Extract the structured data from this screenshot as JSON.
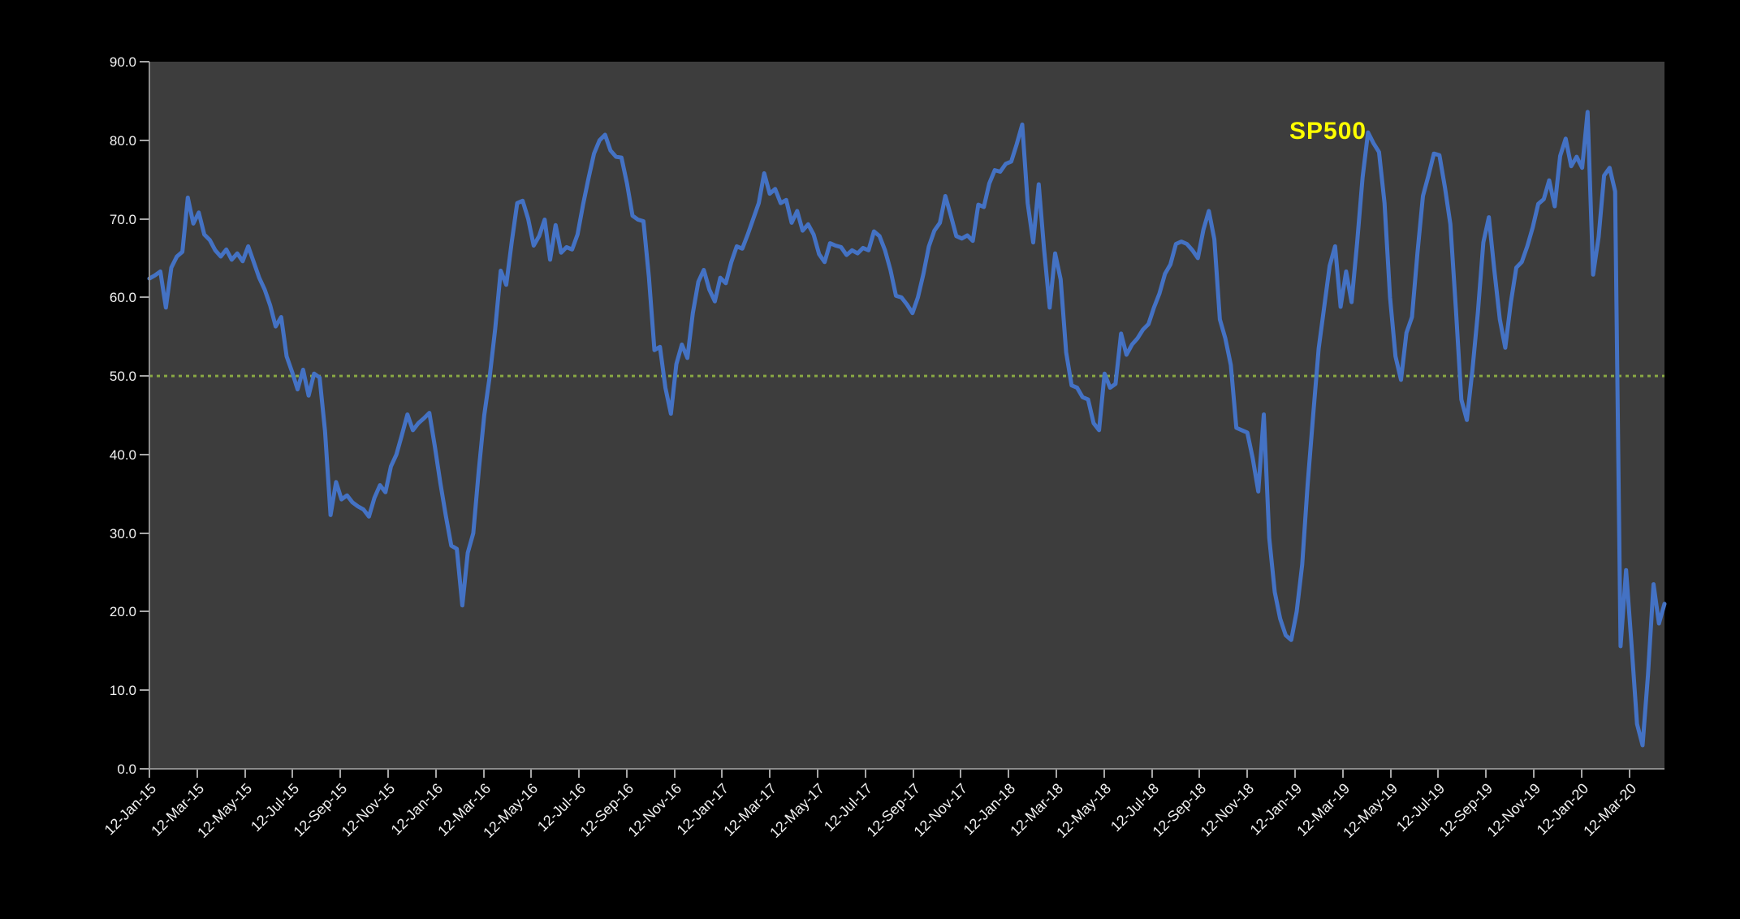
{
  "chart_data": {
    "type": "line",
    "title": "",
    "legend": {
      "label": "SP500",
      "color": "#ffff00",
      "position": "top-right-inside"
    },
    "page_bg": "#000000",
    "plot_bg": "#3d3d3d",
    "axis_line_color": "#8c8c8c",
    "tick_color": "#a6a6a6",
    "label_color": "#f2f2f2",
    "grid": "off",
    "ylim": [
      0,
      90
    ],
    "y_tick_labels": [
      "90.0",
      "80.0",
      "70.0",
      "60.0",
      "50.0",
      "40.0",
      "30.0",
      "20.0",
      "10.0",
      "0.0"
    ],
    "x_tick_labels": [
      "12-Jan-15",
      "12-Mar-15",
      "12-May-15",
      "12-Jul-15",
      "12-Sep-15",
      "12-Nov-15",
      "12-Jan-16",
      "12-Mar-16",
      "12-May-16",
      "12-Jul-16",
      "12-Sep-16",
      "12-Nov-16",
      "12-Jan-17",
      "12-Mar-17",
      "12-May-17",
      "12-Jul-17",
      "12-Sep-17",
      "12-Nov-17",
      "12-Jan-18",
      "12-Mar-18",
      "12-May-18",
      "12-Jul-18",
      "12-Sep-18",
      "12-Nov-18",
      "12-Jan-19",
      "12-Mar-19",
      "12-May-19",
      "12-Jul-19",
      "12-Sep-19",
      "12-Nov-19",
      "12-Jan-20",
      "12-Mar-20"
    ],
    "x_tick_interval_weeks": 8.6957,
    "x_total_weeks": 276,
    "reference_line": {
      "value": 50.0,
      "color": "#89a944",
      "style": "dotted"
    },
    "series": [
      {
        "name": "SP500",
        "color": "#4472c4",
        "cadence": "weekly",
        "start_label": "12-Jan-15",
        "values": [
          62.4,
          62.8,
          63.3,
          58.7,
          63.8,
          65.2,
          65.8,
          72.7,
          69.4,
          70.8,
          68.0,
          67.3,
          66.0,
          65.2,
          66.1,
          64.8,
          65.6,
          64.6,
          66.5,
          64.5,
          62.5,
          61.0,
          59.0,
          56.3,
          57.5,
          52.5,
          50.5,
          48.3,
          50.8,
          47.5,
          50.3,
          49.8,
          43.0,
          32.3,
          36.5,
          34.3,
          34.8,
          33.9,
          33.4,
          33.0,
          32.1,
          34.5,
          36.1,
          35.2,
          38.5,
          40.0,
          42.5,
          45.1,
          43.1,
          44.0,
          44.6,
          45.3,
          41.0,
          36.4,
          32.2,
          28.4,
          28.0,
          20.8,
          27.5,
          30.0,
          38.0,
          45.0,
          50.0,
          56.0,
          63.4,
          61.6,
          67.0,
          72.0,
          72.3,
          70.0,
          66.6,
          67.8,
          69.9,
          64.8,
          69.2,
          65.7,
          66.4,
          66.1,
          68.0,
          71.8,
          75.2,
          78.3,
          80.0,
          80.7,
          78.7,
          77.9,
          77.8,
          74.5,
          70.4,
          69.9,
          69.7,
          62.6,
          53.3,
          53.7,
          48.5,
          45.2,
          51.5,
          54.0,
          52.3,
          58.0,
          62.0,
          63.5,
          61.0,
          59.5,
          62.5,
          61.8,
          64.5,
          66.5,
          66.2,
          68.0,
          70.0,
          72.0,
          75.8,
          73.2,
          73.8,
          72.0,
          72.4,
          69.5,
          71.0,
          68.5,
          69.3,
          68.0,
          65.5,
          64.5,
          66.9,
          66.6,
          66.4,
          65.4,
          66.0,
          65.6,
          66.3,
          66.0,
          68.4,
          67.8,
          66.0,
          63.5,
          60.2,
          60.0,
          59.1,
          58.0,
          60.0,
          63.0,
          66.5,
          68.5,
          69.5,
          72.9,
          70.4,
          67.8,
          67.5,
          67.9,
          67.2,
          71.8,
          71.5,
          74.5,
          76.2,
          76.0,
          77.0,
          77.3,
          79.5,
          82.0,
          72.0,
          67.0,
          74.4,
          66.0,
          58.7,
          65.6,
          62.3,
          53.0,
          48.8,
          48.5,
          47.3,
          47.0,
          44.0,
          43.1,
          50.3,
          48.5,
          49.0,
          55.4,
          52.7,
          54.0,
          54.8,
          55.9,
          56.6,
          58.7,
          60.5,
          63.0,
          64.2,
          66.8,
          67.1,
          66.8,
          66.0,
          65.0,
          68.6,
          71.0,
          67.4,
          57.2,
          54.8,
          51.4,
          43.4,
          43.1,
          42.8,
          39.5,
          35.3,
          45.1,
          29.4,
          22.5,
          19.1,
          17.0,
          16.4,
          20.0,
          26.0,
          36.2,
          45.0,
          53.5,
          58.7,
          64.0,
          66.5,
          58.8,
          63.3,
          59.4,
          66.9,
          75.3,
          81.0,
          79.6,
          78.5,
          72.0,
          60.0,
          52.5,
          49.5,
          55.5,
          57.5,
          65.7,
          72.9,
          75.5,
          78.3,
          78.1,
          74.0,
          69.3,
          58.5,
          47.0,
          44.4,
          50.7,
          58.0,
          67.0,
          70.2,
          63.5,
          57.2,
          53.6,
          59.3,
          63.8,
          64.5,
          66.5,
          68.9,
          71.9,
          72.5,
          74.9,
          71.6,
          78.0,
          80.2,
          76.7,
          77.9,
          76.5,
          83.6,
          62.9,
          67.7,
          75.5,
          76.5,
          73.5,
          15.6,
          25.3,
          15.8,
          5.7,
          3.0,
          12.0,
          23.5,
          18.5,
          21.0
        ]
      }
    ]
  },
  "layout_note_visible_text_only": true
}
